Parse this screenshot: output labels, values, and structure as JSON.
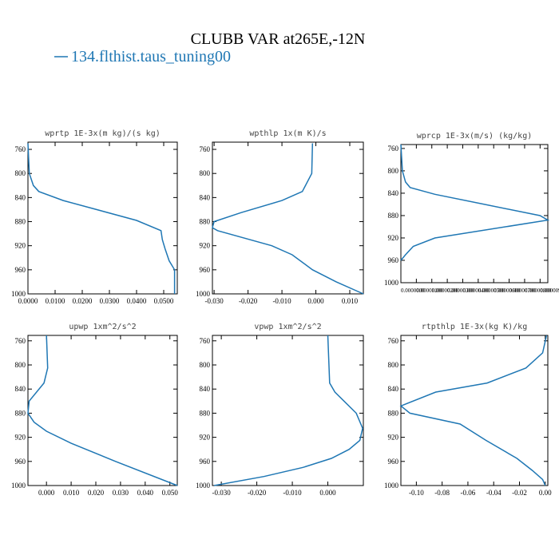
{
  "title": "CLUBB VAR at265E,-12N",
  "chart_data": [
    {
      "type": "line",
      "title": "wprtp  1E-3x(m kg)/(s kg)",
      "xlim": [
        0,
        0.055
      ],
      "xticks": [
        {
          "value": 0,
          "label": "0.0000"
        },
        {
          "value": 0.01,
          "label": "0.0100"
        },
        {
          "value": 0.02,
          "label": "0.0200"
        },
        {
          "value": 0.03,
          "label": "0.0300"
        },
        {
          "value": 0.04,
          "label": "0.0400"
        },
        {
          "value": 0.05,
          "label": "0.0500"
        }
      ],
      "ylim": [
        1000,
        748
      ],
      "yticks": [
        760,
        800,
        840,
        880,
        920,
        960,
        1000
      ],
      "y": [
        750,
        800,
        820,
        830,
        845,
        878,
        895,
        910,
        925,
        945,
        960,
        1000
      ],
      "series": [
        {
          "name": "134.flthist.taus_tuning00",
          "color": "#1f77b4",
          "values": [
            0,
            0.0005,
            0.002,
            0.004,
            0.013,
            0.04,
            0.049,
            0.0495,
            0.0505,
            0.052,
            0.054,
            0.054
          ]
        }
      ]
    },
    {
      "type": "line",
      "title": "wpthlp  1x(m K)/s",
      "xlim": [
        -0.0305,
        0.014
      ],
      "xticks": [
        {
          "value": -0.03,
          "label": "-0.030"
        },
        {
          "value": -0.02,
          "label": "-0.020"
        },
        {
          "value": -0.01,
          "label": "-0.010"
        },
        {
          "value": 0,
          "label": "0.000"
        },
        {
          "value": 0.01,
          "label": "0.010"
        }
      ],
      "ylim": [
        1000,
        748
      ],
      "yticks": [
        760,
        800,
        840,
        880,
        920,
        960,
        1000
      ],
      "y": [
        750,
        800,
        830,
        845,
        865,
        880,
        890,
        895,
        920,
        935,
        960,
        980,
        1000
      ],
      "series": [
        {
          "name": "134.flthist.taus_tuning00",
          "color": "#1f77b4",
          "values": [
            -0.001,
            -0.0012,
            -0.004,
            -0.01,
            -0.022,
            -0.03,
            -0.0305,
            -0.029,
            -0.013,
            -0.007,
            -0.001,
            0.006,
            0.014
          ]
        }
      ]
    },
    {
      "type": "line",
      "title": "wprcp  1E-3x(m/s) (kg/kg)",
      "xlim": [
        0,
        9.5e-06
      ],
      "xticks": [
        {
          "value": 0,
          "label": "0.0000000"
        },
        {
          "value": 1e-06,
          "label": "0.00000100"
        },
        {
          "value": 2e-06,
          "label": "0.00000200"
        },
        {
          "value": 3e-06,
          "label": "0.00000300"
        },
        {
          "value": 4e-06,
          "label": "0.00000400"
        },
        {
          "value": 5e-06,
          "label": "0.00000500"
        },
        {
          "value": 6e-06,
          "label": "0.00000600"
        },
        {
          "value": 7e-06,
          "label": "0.00000700"
        },
        {
          "value": 8e-06,
          "label": "0.00000800"
        },
        {
          "value": 9e-06,
          "label": "0.00000900"
        }
      ],
      "ylim": [
        1000,
        753
      ],
      "yticks": [
        760,
        800,
        840,
        880,
        920,
        960,
        1000
      ],
      "y": [
        753,
        800,
        820,
        830,
        842,
        880,
        888,
        920,
        935,
        950,
        960
      ],
      "series": [
        {
          "name": "134.flthist.taus_tuning00",
          "color": "#1f77b4",
          "values": [
            0,
            1e-07,
            3e-07,
            6e-07,
            2.2e-06,
            9e-06,
            9.5e-06,
            2.2e-06,
            8e-07,
            3e-07,
            0
          ]
        }
      ]
    },
    {
      "type": "line",
      "title": "upwp  1xm^2/s^2",
      "xlim": [
        -0.0075,
        0.053
      ],
      "xticks": [
        {
          "value": 0,
          "label": "0.000"
        },
        {
          "value": 0.01,
          "label": "0.010"
        },
        {
          "value": 0.02,
          "label": "0.020"
        },
        {
          "value": 0.03,
          "label": "0.030"
        },
        {
          "value": 0.04,
          "label": "0.040"
        },
        {
          "value": 0.05,
          "label": "0.050"
        }
      ],
      "ylim": [
        1000,
        751
      ],
      "yticks": [
        760,
        800,
        840,
        880,
        920,
        960,
        1000
      ],
      "y": [
        751,
        805,
        830,
        860,
        880,
        895,
        910,
        930,
        960,
        1000
      ],
      "series": [
        {
          "name": "134.flthist.taus_tuning00",
          "color": "#1f77b4",
          "values": [
            0,
            0.0005,
            -0.001,
            -0.007,
            -0.0075,
            -0.005,
            0,
            0.01,
            0.028,
            0.053
          ]
        }
      ]
    },
    {
      "type": "line",
      "title": "vpwp  1xm^2/s^2",
      "xlim": [
        -0.0325,
        0.01
      ],
      "xticks": [
        {
          "value": -0.03,
          "label": "-0.030"
        },
        {
          "value": -0.02,
          "label": "-0.020"
        },
        {
          "value": -0.01,
          "label": "-0.010"
        },
        {
          "value": 0,
          "label": "0.000"
        }
      ],
      "ylim": [
        1000,
        751
      ],
      "yticks": [
        760,
        800,
        840,
        880,
        920,
        960,
        1000
      ],
      "y": [
        751,
        830,
        845,
        880,
        905,
        925,
        940,
        955,
        970,
        985,
        1000
      ],
      "series": [
        {
          "name": "134.flthist.taus_tuning00",
          "color": "#1f77b4",
          "values": [
            0,
            0.0005,
            0.002,
            0.008,
            0.0098,
            0.009,
            0.006,
            0.001,
            -0.007,
            -0.018,
            -0.032
          ]
        }
      ]
    },
    {
      "type": "line",
      "title": "rtpthlp  1E-3x(kg K)/kg",
      "xlim": [
        -0.112,
        0.002
      ],
      "xticks": [
        {
          "value": -0.1,
          "label": "-0.10"
        },
        {
          "value": -0.08,
          "label": "-0.08"
        },
        {
          "value": -0.06,
          "label": "-0.06"
        },
        {
          "value": -0.04,
          "label": "-0.04"
        },
        {
          "value": -0.02,
          "label": "-0.02"
        },
        {
          "value": 0,
          "label": "0.00"
        }
      ],
      "ylim": [
        1000,
        751
      ],
      "yticks": [
        760,
        800,
        840,
        880,
        920,
        960,
        1000
      ],
      "y": [
        751,
        780,
        805,
        830,
        845,
        868,
        880,
        898,
        925,
        955,
        975,
        990,
        1000
      ],
      "series": [
        {
          "name": "134.flthist.taus_tuning00",
          "color": "#1f77b4",
          "values": [
            0.001,
            -0.002,
            -0.015,
            -0.045,
            -0.085,
            -0.112,
            -0.105,
            -0.066,
            -0.046,
            -0.022,
            -0.01,
            -0.002,
            0
          ]
        }
      ]
    }
  ]
}
